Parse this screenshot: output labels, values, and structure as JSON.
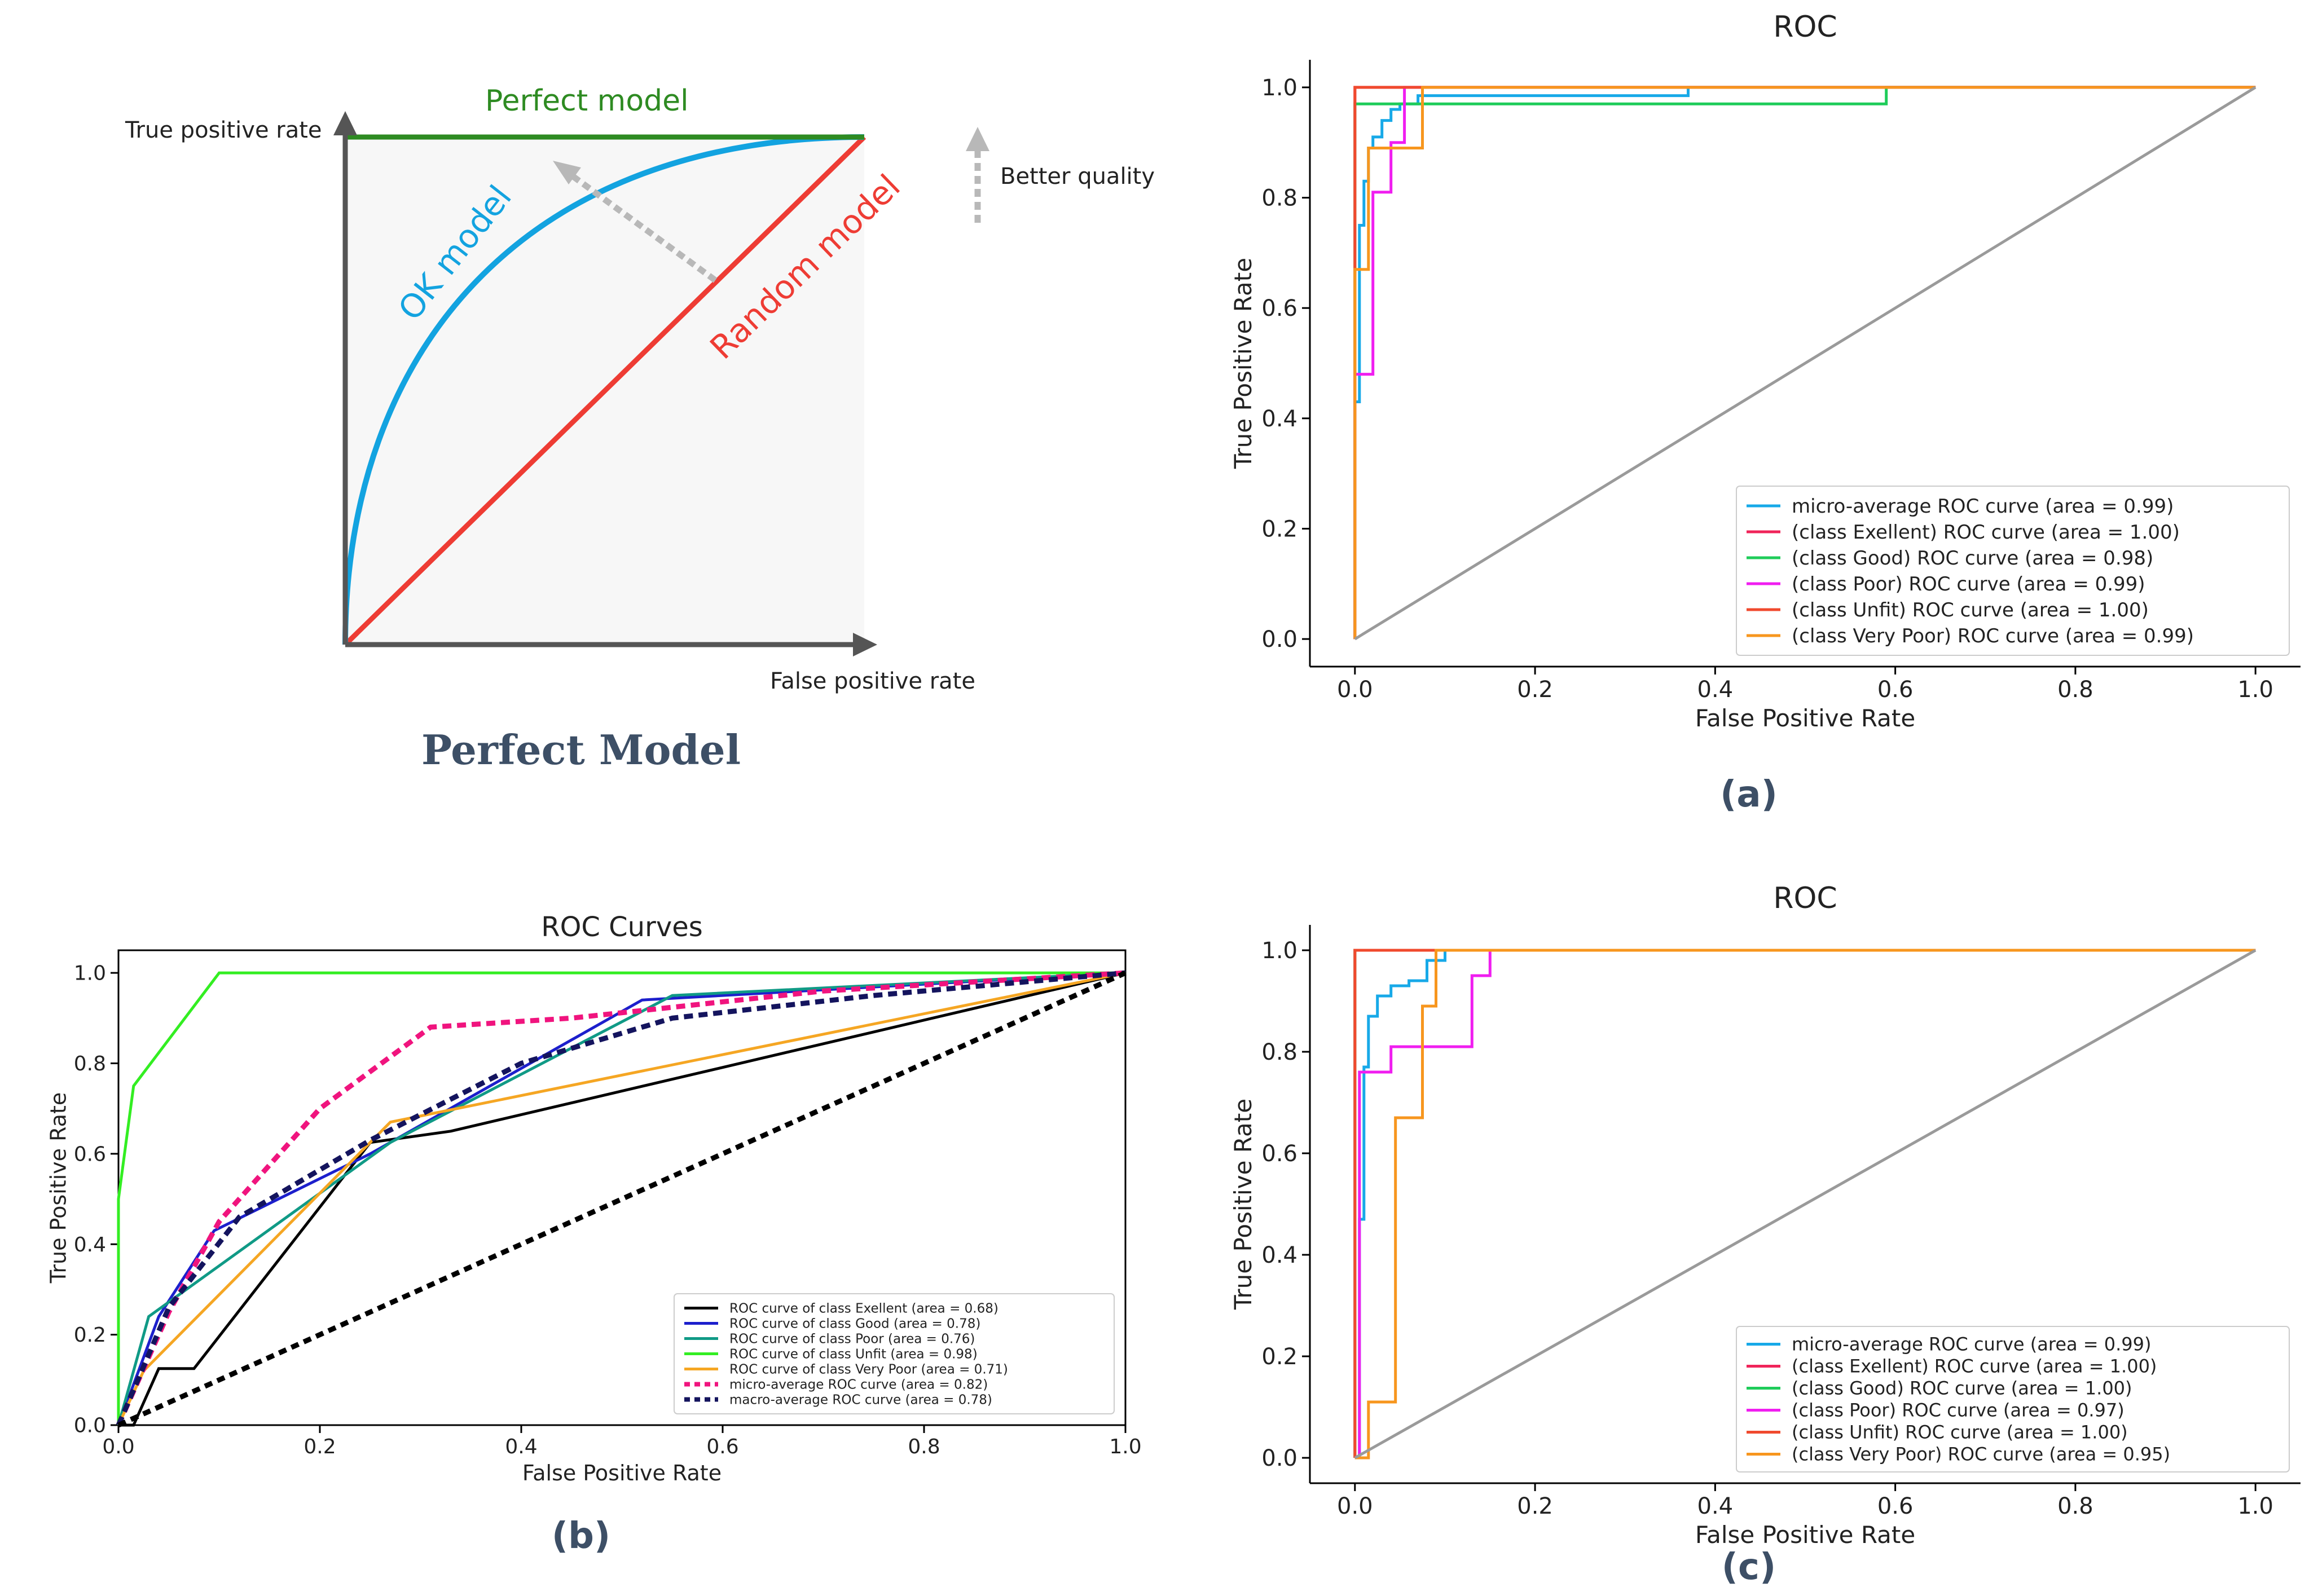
{
  "schematic": {
    "title": "Perfect Model",
    "y_axis_label": "True positive rate",
    "x_axis_label": "False positive rate",
    "perfect_label": "Perfect model",
    "ok_label": "OK model",
    "random_label": "Random model",
    "better_label": "Better quality",
    "colors": {
      "perfect": "#2e8b22",
      "ok": "#13a3e0",
      "random": "#ee3c34",
      "axis": "#555555",
      "arrow": "#b8b8b8",
      "fill": "#f7f7f7"
    }
  },
  "captions": {
    "a": "(a)",
    "b": "(b)",
    "c": "(c)"
  },
  "chart_data": [
    {
      "id": "a",
      "type": "line",
      "title": "ROC",
      "xlabel": "False Positive Rate",
      "ylabel": "True Positive Rate",
      "xlim": [
        -0.05,
        1.05
      ],
      "ylim": [
        -0.05,
        1.05
      ],
      "xticks": [
        "0.0",
        "0.2",
        "0.4",
        "0.6",
        "0.8",
        "1.0"
      ],
      "yticks": [
        "0.0",
        "0.2",
        "0.4",
        "0.6",
        "0.8",
        "1.0"
      ],
      "legend_position": "lower-right",
      "series": [
        {
          "name": "micro-average ROC curve (area = 0.99)",
          "color": "#17a9e8",
          "dash": "",
          "x": [
            0,
            0,
            0.005,
            0.005,
            0.01,
            0.01,
            0.015,
            0.015,
            0.02,
            0.02,
            0.03,
            0.03,
            0.04,
            0.04,
            0.05,
            0.05,
            0.07,
            0.07,
            0.37,
            0.37,
            1.0
          ],
          "y": [
            0,
            0.43,
            0.43,
            0.75,
            0.75,
            0.83,
            0.83,
            0.89,
            0.89,
            0.91,
            0.91,
            0.94,
            0.94,
            0.96,
            0.96,
            0.97,
            0.97,
            0.985,
            0.985,
            1.0,
            1.0
          ]
        },
        {
          "name": "(class Exellent) ROC curve (area = 1.00)",
          "color": "#f0245a",
          "dash": "",
          "x": [
            0,
            0,
            1.0
          ],
          "y": [
            0,
            1.0,
            1.0
          ]
        },
        {
          "name": "(class Good) ROC curve (area = 0.98)",
          "color": "#1fcc5a",
          "dash": "",
          "x": [
            0,
            0,
            0.59,
            0.59,
            1.0
          ],
          "y": [
            0,
            0.97,
            0.97,
            1.0,
            1.0
          ]
        },
        {
          "name": "(class Poor) ROC curve (area = 0.99)",
          "color": "#f01ef0",
          "dash": "",
          "x": [
            0,
            0,
            0.005,
            0.005,
            0.02,
            0.02,
            0.04,
            0.04,
            0.055,
            0.055,
            1.0
          ],
          "y": [
            0,
            0.48,
            0.48,
            0.48,
            0.48,
            0.81,
            0.81,
            0.9,
            0.9,
            1.0,
            1.0
          ]
        },
        {
          "name": "(class Unfit) ROC curve (area = 1.00)",
          "color": "#f04a2e",
          "dash": "",
          "x": [
            0,
            0,
            1.0
          ],
          "y": [
            0,
            1.0,
            1.0
          ]
        },
        {
          "name": "(class Very Poor) ROC curve (area = 0.99)",
          "color": "#f7961e",
          "dash": "",
          "x": [
            0,
            0,
            0.015,
            0.015,
            0.04,
            0.04,
            0.075,
            0.075,
            1.0
          ],
          "y": [
            0,
            0.67,
            0.67,
            0.89,
            0.89,
            0.89,
            0.89,
            1.0,
            1.0
          ]
        },
        {
          "name": "",
          "color": "#9a9a9a",
          "dash": "",
          "x": [
            0,
            1.0
          ],
          "y": [
            0,
            1.0
          ]
        }
      ]
    },
    {
      "id": "b",
      "type": "line",
      "title": "ROC Curves",
      "xlabel": "False Positive Rate",
      "ylabel": "True Positive Rate",
      "xlim": [
        0.0,
        1.0
      ],
      "ylim": [
        0.0,
        1.05
      ],
      "xticks": [
        "0.0",
        "0.2",
        "0.4",
        "0.6",
        "0.8",
        "1.0"
      ],
      "yticks": [
        "0.0",
        "0.2",
        "0.4",
        "0.6",
        "0.8",
        "1.0"
      ],
      "legend_position": "lower-right",
      "series": [
        {
          "name": "ROC curve of class Exellent (area = 0.68)",
          "color": "#000000",
          "dash": "",
          "x": [
            0,
            0.015,
            0.04,
            0.075,
            0.25,
            0.33,
            1.0
          ],
          "y": [
            0,
            0,
            0.125,
            0.125,
            0.625,
            0.65,
            1.0
          ]
        },
        {
          "name": "ROC curve of class Good (area = 0.78)",
          "color": "#1c1fcc",
          "dash": "",
          "x": [
            0,
            0.04,
            0.095,
            0.25,
            0.52,
            1.0
          ],
          "y": [
            0,
            0.24,
            0.43,
            0.6,
            0.94,
            1.0
          ]
        },
        {
          "name": "ROC curve of class Poor (area = 0.76)",
          "color": "#109a86",
          "dash": "",
          "x": [
            0,
            0.03,
            0.27,
            0.55,
            1.0
          ],
          "y": [
            0,
            0.24,
            0.625,
            0.95,
            1.0
          ]
        },
        {
          "name": "ROC curve of class Unfit (area = 0.98)",
          "color": "#33ee22",
          "dash": "",
          "x": [
            0,
            0,
            0.015,
            0.1,
            1.0
          ],
          "y": [
            0,
            0.5,
            0.75,
            1.0,
            1.0
          ]
        },
        {
          "name": "ROC curve of class Very Poor (area = 0.71)",
          "color": "#f5a623",
          "dash": "",
          "x": [
            0,
            0.025,
            0.27,
            1.0
          ],
          "y": [
            0,
            0.12,
            0.67,
            1.0
          ]
        },
        {
          "name": "micro-average ROC curve (area = 0.82)",
          "color": "#f0147e",
          "dash": "16,10",
          "x": [
            0,
            0.05,
            0.1,
            0.2,
            0.31,
            0.45,
            0.7,
            1.0
          ],
          "y": [
            0,
            0.25,
            0.45,
            0.7,
            0.88,
            0.9,
            0.96,
            1.0
          ]
        },
        {
          "name": "macro-average ROC curve (area = 0.78)",
          "color": "#14145e",
          "dash": "16,10",
          "x": [
            0,
            0.05,
            0.12,
            0.25,
            0.4,
            0.55,
            0.75,
            1.0
          ],
          "y": [
            0,
            0.26,
            0.46,
            0.63,
            0.8,
            0.9,
            0.95,
            1.0
          ]
        },
        {
          "name": "",
          "color": "#000000",
          "dash": "14,10",
          "x": [
            0,
            1.0
          ],
          "y": [
            0,
            1.0
          ]
        }
      ]
    },
    {
      "id": "c",
      "type": "line",
      "title": "ROC",
      "xlabel": "False Positive Rate",
      "ylabel": "True Positive Rate",
      "xlim": [
        -0.05,
        1.05
      ],
      "ylim": [
        -0.05,
        1.05
      ],
      "xticks": [
        "0.0",
        "0.2",
        "0.4",
        "0.6",
        "0.8",
        "1.0"
      ],
      "yticks": [
        "0.0",
        "0.2",
        "0.4",
        "0.6",
        "0.8",
        "1.0"
      ],
      "legend_position": "lower-right",
      "series": [
        {
          "name": "micro-average ROC curve (area = 0.99)",
          "color": "#17a9e8",
          "dash": "",
          "x": [
            0,
            0.005,
            0.005,
            0.01,
            0.01,
            0.015,
            0.015,
            0.025,
            0.025,
            0.04,
            0.04,
            0.06,
            0.06,
            0.08,
            0.08,
            0.1,
            0.1,
            1.0
          ],
          "y": [
            0,
            0,
            0.47,
            0.47,
            0.77,
            0.77,
            0.87,
            0.87,
            0.91,
            0.91,
            0.93,
            0.93,
            0.94,
            0.94,
            0.98,
            0.98,
            1.0,
            1.0
          ]
        },
        {
          "name": "(class Exellent) ROC curve (area = 1.00)",
          "color": "#f0245a",
          "dash": "",
          "x": [
            0,
            0,
            1.0
          ],
          "y": [
            0,
            1.0,
            1.0
          ]
        },
        {
          "name": "(class Good) ROC curve (area = 1.00)",
          "color": "#1fcc5a",
          "dash": "",
          "x": [
            0,
            0,
            1.0
          ],
          "y": [
            0,
            1.0,
            1.0
          ]
        },
        {
          "name": "(class Poor) ROC curve (area = 0.97)",
          "color": "#f01ef0",
          "dash": "",
          "x": [
            0,
            0.005,
            0.005,
            0.04,
            0.04,
            0.13,
            0.13,
            0.15,
            0.15,
            1.0
          ],
          "y": [
            0,
            0,
            0.76,
            0.76,
            0.81,
            0.81,
            0.95,
            0.95,
            1.0,
            1.0
          ]
        },
        {
          "name": "(class Unfit) ROC curve (area = 1.00)",
          "color": "#f04a2e",
          "dash": "",
          "x": [
            0,
            0,
            1.0
          ],
          "y": [
            0,
            1.0,
            1.0
          ]
        },
        {
          "name": "(class Very Poor) ROC curve (area = 0.95)",
          "color": "#f7961e",
          "dash": "",
          "x": [
            0,
            0.015,
            0.015,
            0.045,
            0.045,
            0.075,
            0.075,
            0.09,
            0.09,
            0.1,
            0.1,
            1.0
          ],
          "y": [
            0,
            0,
            0.11,
            0.11,
            0.67,
            0.67,
            0.89,
            0.89,
            1.0,
            1.0,
            1.0,
            1.0
          ]
        },
        {
          "name": "",
          "color": "#9a9a9a",
          "dash": "",
          "x": [
            0,
            1.0
          ],
          "y": [
            0,
            1.0
          ]
        }
      ]
    }
  ]
}
